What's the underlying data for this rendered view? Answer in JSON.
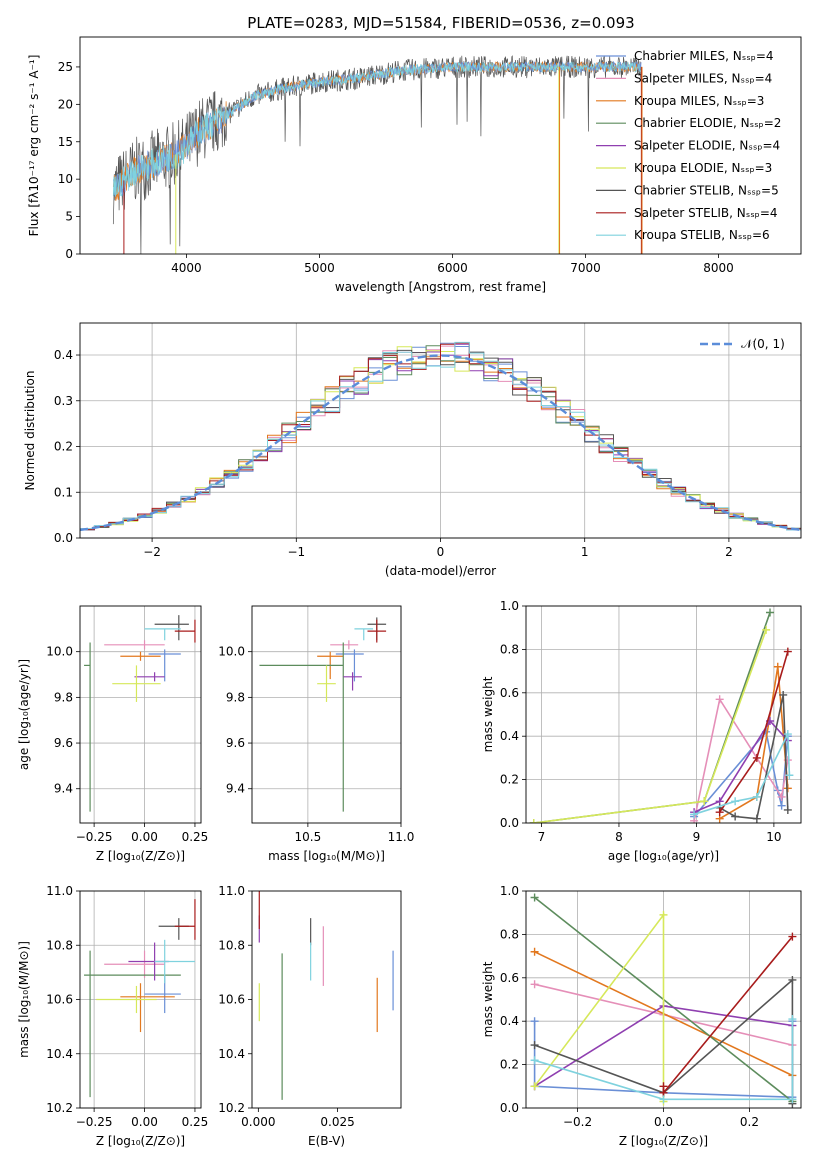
{
  "figure_title": "PLATE=0283, MJD=51584, FIBERID=0536, z=0.093",
  "colors": {
    "Chabrier MILES": "#6a8fd6",
    "Salpeter MILES": "#e58fb8",
    "Kroupa MILES": "#e2781f",
    "Chabrier ELODIE": "#5d8c5d",
    "Salpeter ELODIE": "#8f3fb0",
    "Kroupa ELODIE": "#d6e85a",
    "Chabrier STELIB": "#555555",
    "Salpeter STELIB": "#a81c1c",
    "Kroupa STELIB": "#7fd2de"
  },
  "chart_data": [
    {
      "id": "spectrum",
      "type": "line",
      "xlabel": "wavelength [Angstrom, rest frame]",
      "ylabel": "Flux [fλ10⁻¹⁷ erg cm⁻² s⁻¹ A⁻¹]",
      "xlim": [
        3200,
        8620
      ],
      "ylim": [
        0,
        29
      ],
      "xticks": [
        4000,
        5000,
        6000,
        7000,
        8000
      ],
      "yticks": [
        0,
        5,
        10,
        15,
        20,
        25
      ],
      "grid": false,
      "legend_position": "top-right",
      "continuum": [
        [
          3450,
          8.5
        ],
        [
          3600,
          11
        ],
        [
          3800,
          12.5
        ],
        [
          3950,
          13.5
        ],
        [
          4100,
          16.5
        ],
        [
          4300,
          18.5
        ],
        [
          4500,
          21
        ],
        [
          4700,
          22
        ],
        [
          5000,
          23
        ],
        [
          5300,
          23.5
        ],
        [
          5600,
          24.5
        ],
        [
          6000,
          25
        ],
        [
          6400,
          25
        ],
        [
          6800,
          25
        ],
        [
          7200,
          25
        ],
        [
          7420,
          25
        ]
      ],
      "series": [
        {
          "name": "Chabrier MILES, Nₛₛₚ=4"
        },
        {
          "name": "Salpeter MILES, Nₛₛₚ=4"
        },
        {
          "name": "Kroupa MILES, Nₛₛₚ=3"
        },
        {
          "name": "Chabrier ELODIE, Nₛₛₚ=2"
        },
        {
          "name": "Salpeter ELODIE, Nₛₛₚ=4"
        },
        {
          "name": "Kroupa ELODIE, Nₛₛₚ=3"
        },
        {
          "name": "Chabrier STELIB, Nₛₛₚ=5"
        },
        {
          "name": "Salpeter STELIB, Nₛₛₚ=4"
        },
        {
          "name": "Kroupa STELIB, Nₛₛₚ=6"
        }
      ]
    },
    {
      "id": "residuals",
      "type": "histogram",
      "xlabel": "(data-model)/error",
      "ylabel": "Normed distribution",
      "xlim": [
        -2.5,
        2.5
      ],
      "ylim": [
        0,
        0.47
      ],
      "xticks": [
        -2,
        -1,
        0,
        1,
        2
      ],
      "yticks": [
        0.0,
        0.1,
        0.2,
        0.3,
        0.4
      ],
      "grid": true,
      "legend_position": "top-right",
      "reference_curve": {
        "name": "𝒩(0, 1)",
        "mean": 0,
        "sigma": 1
      },
      "bin_width": 0.1
    },
    {
      "id": "age_vs_Z",
      "type": "errorbar",
      "xlabel": "Z [log₁₀(Z/Z⊙)]",
      "ylabel": "age  [log₁₀(age/yr)]",
      "xlim": [
        -0.32,
        0.28
      ],
      "ylim": [
        9.25,
        10.2
      ],
      "xticks": [
        -0.25,
        0.0,
        0.25
      ],
      "xtick_labels": [
        "−0.25",
        "0.00",
        "0.25"
      ],
      "yticks": [
        9.4,
        9.6,
        9.8,
        10.0
      ],
      "grid": true,
      "points": [
        {
          "model": "Chabrier MILES",
          "x": 0.1,
          "xerr": [
            0.08,
            0.08
          ],
          "y": 9.99,
          "yerr": [
            0.12,
            0.02
          ]
        },
        {
          "model": "Salpeter MILES",
          "x": 0.0,
          "xerr": [
            0.2,
            0.1
          ],
          "y": 10.03,
          "yerr": [
            0.02,
            0.02
          ]
        },
        {
          "model": "Kroupa MILES",
          "x": -0.02,
          "xerr": [
            0.1,
            0.1
          ],
          "y": 9.98,
          "yerr": [
            0.02,
            0.02
          ]
        },
        {
          "model": "Chabrier ELODIE",
          "x": -0.27,
          "xerr": [
            0.03,
            0.0
          ],
          "y": 9.94,
          "yerr": [
            0.64,
            0.1
          ]
        },
        {
          "model": "Salpeter ELODIE",
          "x": 0.05,
          "xerr": [
            0.1,
            0.05
          ],
          "y": 9.89,
          "yerr": [
            0.02,
            0.02
          ]
        },
        {
          "model": "Kroupa ELODIE",
          "x": -0.04,
          "xerr": [
            0.12,
            0.12
          ],
          "y": 9.86,
          "yerr": [
            0.08,
            0.08
          ]
        },
        {
          "model": "Chabrier STELIB",
          "x": 0.17,
          "xerr": [
            0.12,
            0.05
          ],
          "y": 10.12,
          "yerr": [
            0.07,
            0.04
          ]
        },
        {
          "model": "Salpeter STELIB",
          "x": 0.25,
          "xerr": [
            0.1,
            0.0
          ],
          "y": 10.09,
          "yerr": [
            0.05,
            0.05
          ]
        },
        {
          "model": "Kroupa STELIB",
          "x": 0.1,
          "xerr": [
            0.1,
            0.08
          ],
          "y": 10.1,
          "yerr": [
            0.05,
            0.0
          ]
        }
      ]
    },
    {
      "id": "age_vs_mass",
      "type": "errorbar",
      "xlabel": "mass [log₁₀(M/M⊙)]",
      "ylabel": "",
      "xlim": [
        10.2,
        11.0
      ],
      "ylim": [
        9.25,
        10.2
      ],
      "xticks": [
        10.5,
        11.0
      ],
      "xtick_labels": [
        "10.5",
        "11.0"
      ],
      "yticks": [
        9.4,
        9.6,
        9.8,
        10.0
      ],
      "grid": true,
      "points": [
        {
          "model": "Chabrier MILES",
          "x": 10.75,
          "xerr": [
            0.1,
            0.05
          ],
          "y": 9.99,
          "yerr": [
            0.12,
            0.02
          ]
        },
        {
          "model": "Salpeter MILES",
          "x": 10.72,
          "xerr": [
            0.1,
            0.05
          ],
          "y": 10.03,
          "yerr": [
            0.02,
            0.02
          ]
        },
        {
          "model": "Kroupa MILES",
          "x": 10.62,
          "xerr": [
            0.07,
            0.07
          ],
          "y": 9.98,
          "yerr": [
            0.1,
            0.02
          ]
        },
        {
          "model": "Chabrier ELODIE",
          "x": 10.69,
          "xerr": [
            0.45,
            0.0
          ],
          "y": 9.94,
          "yerr": [
            0.64,
            0.1
          ]
        },
        {
          "model": "Salpeter ELODIE",
          "x": 10.74,
          "xerr": [
            0.05,
            0.05
          ],
          "y": 9.89,
          "yerr": [
            0.06,
            0.02
          ]
        },
        {
          "model": "Kroupa ELODIE",
          "x": 10.6,
          "xerr": [
            0.05,
            0.05
          ],
          "y": 9.86,
          "yerr": [
            0.08,
            0.08
          ]
        },
        {
          "model": "Chabrier STELIB",
          "x": 10.87,
          "xerr": [
            0.05,
            0.05
          ],
          "y": 10.12,
          "yerr": [
            0.07,
            0.03
          ]
        },
        {
          "model": "Salpeter STELIB",
          "x": 10.87,
          "xerr": [
            0.05,
            0.05
          ],
          "y": 10.09,
          "yerr": [
            0.05,
            0.05
          ]
        },
        {
          "model": "Kroupa STELIB",
          "x": 10.8,
          "xerr": [
            0.05,
            0.05
          ],
          "y": 10.1,
          "yerr": [
            0.05,
            0.0
          ]
        }
      ]
    },
    {
      "id": "weight_vs_age",
      "type": "line",
      "xlabel": "age  [log₁₀(age/yr)]",
      "ylabel": "mass weight",
      "xlim": [
        6.8,
        10.35
      ],
      "ylim": [
        0,
        1
      ],
      "xticks": [
        7,
        8,
        9,
        10
      ],
      "xtick_labels": [
        "7",
        "8",
        "9",
        "10"
      ],
      "yticks": [
        0.0,
        0.2,
        0.4,
        0.6,
        0.8,
        1.0
      ],
      "grid": true,
      "series": [
        {
          "model": "Chabrier MILES",
          "points": [
            [
              8.97,
              0.03
            ],
            [
              9.9,
              0.42
            ],
            [
              10.05,
              0.15
            ],
            [
              10.1,
              0.08
            ],
            [
              10.18,
              0.4
            ]
          ]
        },
        {
          "model": "Salpeter MILES",
          "points": [
            [
              8.97,
              0.01
            ],
            [
              9.3,
              0.57
            ],
            [
              10.1,
              0.12
            ],
            [
              10.18,
              0.29
            ]
          ]
        },
        {
          "model": "Kroupa MILES",
          "points": [
            [
              9.3,
              0.02
            ],
            [
              9.78,
              0.12
            ],
            [
              10.05,
              0.72
            ],
            [
              10.18,
              0.16
            ]
          ]
        },
        {
          "model": "Chabrier ELODIE",
          "points": [
            [
              6.9,
              0.0
            ],
            [
              9.1,
              0.1
            ],
            [
              9.95,
              0.97
            ]
          ]
        },
        {
          "model": "Salpeter ELODIE",
          "points": [
            [
              8.97,
              0.05
            ],
            [
              9.3,
              0.1
            ],
            [
              9.95,
              0.47
            ],
            [
              10.18,
              0.38
            ]
          ]
        },
        {
          "model": "Kroupa ELODIE",
          "points": [
            [
              6.9,
              0.0
            ],
            [
              9.1,
              0.1
            ],
            [
              9.9,
              0.89
            ]
          ]
        },
        {
          "model": "Chabrier STELIB",
          "points": [
            [
              9.3,
              0.07
            ],
            [
              9.5,
              0.03
            ],
            [
              9.78,
              0.02
            ],
            [
              10.12,
              0.59
            ],
            [
              10.18,
              0.06
            ]
          ]
        },
        {
          "model": "Salpeter STELIB",
          "points": [
            [
              9.3,
              0.05
            ],
            [
              9.78,
              0.3
            ],
            [
              10.18,
              0.79
            ]
          ]
        },
        {
          "model": "Kroupa STELIB",
          "points": [
            [
              8.97,
              0.04
            ],
            [
              9.5,
              0.1
            ],
            [
              9.78,
              0.12
            ],
            [
              10.18,
              0.41
            ],
            [
              10.2,
              0.22
            ]
          ]
        }
      ]
    },
    {
      "id": "mass_vs_Z",
      "type": "errorbar",
      "xlabel": "Z [log₁₀(Z/Z⊙)]",
      "ylabel": "mass [log₁₀(M/M⊙)]",
      "xlim": [
        -0.32,
        0.28
      ],
      "ylim": [
        10.2,
        11.0
      ],
      "xticks": [
        -0.25,
        0.0,
        0.25
      ],
      "xtick_labels": [
        "−0.25",
        "0.00",
        "0.25"
      ],
      "yticks": [
        10.2,
        10.4,
        10.6,
        10.8,
        11.0
      ],
      "grid": true,
      "points": [
        {
          "model": "Chabrier MILES",
          "x": 0.1,
          "xerr": [
            0.1,
            0.08
          ],
          "y": 10.62,
          "yerr": [
            0.07,
            0.07
          ]
        },
        {
          "model": "Salpeter MILES",
          "x": 0.0,
          "xerr": [
            0.2,
            0.1
          ],
          "y": 10.73,
          "yerr": [
            0.05,
            0.05
          ]
        },
        {
          "model": "Kroupa MILES",
          "x": -0.02,
          "xerr": [
            0.1,
            0.17
          ],
          "y": 10.61,
          "yerr": [
            0.13,
            0.05
          ]
        },
        {
          "model": "Chabrier ELODIE",
          "x": -0.27,
          "xerr": [
            0.03,
            0.45
          ],
          "y": 10.69,
          "yerr": [
            0.45,
            0.09
          ]
        },
        {
          "model": "Salpeter ELODIE",
          "x": 0.05,
          "xerr": [
            0.13,
            0.07
          ],
          "y": 10.74,
          "yerr": [
            0.07,
            0.07
          ]
        },
        {
          "model": "Kroupa ELODIE",
          "x": -0.04,
          "xerr": [
            0.2,
            0.1
          ],
          "y": 10.6,
          "yerr": [
            0.05,
            0.05
          ]
        },
        {
          "model": "Chabrier STELIB",
          "x": 0.17,
          "xerr": [
            0.1,
            0.05
          ],
          "y": 10.87,
          "yerr": [
            0.05,
            0.03
          ]
        },
        {
          "model": "Salpeter STELIB",
          "x": 0.25,
          "xerr": [
            0.1,
            0.0
          ],
          "y": 10.87,
          "yerr": [
            0.05,
            0.1
          ]
        },
        {
          "model": "Kroupa STELIB",
          "x": 0.1,
          "xerr": [
            0.05,
            0.15
          ],
          "y": 10.74,
          "yerr": [
            0.08,
            0.08
          ]
        }
      ]
    },
    {
      "id": "mass_vs_ebv",
      "type": "errorbar",
      "xlabel": "E(B-V)",
      "ylabel": "",
      "xlim": [
        -0.002,
        0.045
      ],
      "ylim": [
        10.2,
        11.0
      ],
      "xticks": [
        0.0,
        0.025
      ],
      "xtick_labels": [
        "0.000",
        "0.025"
      ],
      "yticks": [
        10.2,
        10.4,
        10.6,
        10.8,
        11.0
      ],
      "grid": false,
      "points": [
        {
          "model": "Chabrier MILES",
          "x": 0.0425,
          "y": 10.66,
          "yerr": [
            0.1,
            0.12
          ]
        },
        {
          "model": "Salpeter MILES",
          "x": 0.0205,
          "y": 10.76,
          "yerr": [
            0.11,
            0.11
          ]
        },
        {
          "model": "Kroupa MILES",
          "x": 0.0375,
          "y": 10.58,
          "yerr": [
            0.1,
            0.1
          ]
        },
        {
          "model": "Chabrier ELODIE",
          "x": 0.0075,
          "y": 10.5,
          "yerr": [
            0.27,
            0.27
          ]
        },
        {
          "model": "Salpeter ELODIE",
          "x": 0.0003,
          "y": 10.86,
          "yerr": [
            0.05,
            0.05
          ]
        },
        {
          "model": "Kroupa ELODIE",
          "x": 0.0003,
          "y": 10.6,
          "yerr": [
            0.08,
            0.06
          ]
        },
        {
          "model": "Chabrier STELIB",
          "x": 0.0165,
          "y": 10.85,
          "yerr": [
            0.05,
            0.05
          ]
        },
        {
          "model": "Salpeter STELIB",
          "x": 0.0003,
          "y": 10.93,
          "yerr": [
            0.07,
            0.07
          ]
        },
        {
          "model": "Kroupa STELIB",
          "x": 0.0165,
          "y": 10.74,
          "yerr": [
            0.07,
            0.07
          ]
        }
      ]
    },
    {
      "id": "weight_vs_Z",
      "type": "line",
      "xlabel": "Z [log₁₀(Z/Z⊙)]",
      "ylabel": "mass weight",
      "xlim": [
        -0.32,
        0.32
      ],
      "ylim": [
        0,
        1
      ],
      "xticks": [
        -0.2,
        0.0,
        0.2
      ],
      "xtick_labels": [
        "−0.2",
        "0.0",
        "0.2"
      ],
      "yticks": [
        0.0,
        0.2,
        0.4,
        0.6,
        0.8,
        1.0
      ],
      "grid": true,
      "series": [
        {
          "model": "Chabrier MILES",
          "points": [
            [
              -0.3,
              0.4
            ],
            [
              -0.3,
              0.1
            ],
            [
              0.0,
              0.07
            ],
            [
              0.3,
              0.05
            ],
            [
              0.3,
              0.4
            ]
          ]
        },
        {
          "model": "Salpeter MILES",
          "points": [
            [
              -0.3,
              0.57
            ],
            [
              0.0,
              0.43
            ],
            [
              0.3,
              0.29
            ]
          ]
        },
        {
          "model": "Kroupa MILES",
          "points": [
            [
              -0.3,
              0.72
            ],
            [
              0.3,
              0.15
            ]
          ]
        },
        {
          "model": "Chabrier ELODIE",
          "points": [
            [
              -0.3,
              0.97
            ],
            [
              0.3,
              0.03
            ]
          ]
        },
        {
          "model": "Salpeter ELODIE",
          "points": [
            [
              -0.3,
              0.1
            ],
            [
              0.0,
              0.47
            ],
            [
              0.3,
              0.38
            ]
          ]
        },
        {
          "model": "Kroupa ELODIE",
          "points": [
            [
              -0.3,
              0.1
            ],
            [
              0.0,
              0.89
            ],
            [
              0.0,
              0.03
            ]
          ]
        },
        {
          "model": "Chabrier STELIB",
          "points": [
            [
              -0.3,
              0.29
            ],
            [
              0.0,
              0.07
            ],
            [
              0.3,
              0.59
            ],
            [
              0.3,
              0.02
            ]
          ]
        },
        {
          "model": "Salpeter STELIB",
          "points": [
            [
              0.0,
              0.1
            ],
            [
              0.0,
              0.07
            ],
            [
              0.3,
              0.79
            ]
          ]
        },
        {
          "model": "Kroupa STELIB",
          "points": [
            [
              -0.3,
              0.22
            ],
            [
              0.0,
              0.04
            ],
            [
              0.3,
              0.04
            ],
            [
              0.3,
              0.41
            ]
          ]
        }
      ]
    }
  ]
}
